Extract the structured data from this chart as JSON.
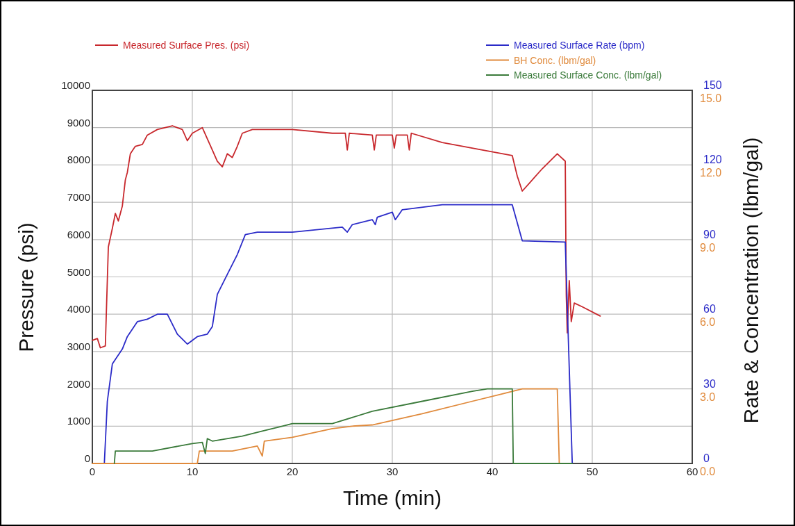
{
  "chart_data": {
    "type": "line",
    "xlabel": "Time (min)",
    "ylabel": "Pressure (psi)",
    "y2label": "Rate & Concentration (lbm/gal)",
    "xlim": [
      0,
      60
    ],
    "xticks": [
      0,
      10,
      20,
      30,
      40,
      50,
      60
    ],
    "ylim": [
      0,
      10000
    ],
    "yticks": [
      0,
      1000,
      2000,
      3000,
      4000,
      5000,
      6000,
      7000,
      8000,
      9000,
      10000
    ],
    "y2lim": [
      0,
      150
    ],
    "y2ticks": [
      0,
      30,
      60,
      90,
      120,
      150
    ],
    "y3lim": [
      0,
      15
    ],
    "y3ticks": [
      {
        "value": 0,
        "label": "0.0"
      },
      {
        "value": 3,
        "label": "3.0"
      },
      {
        "value": 6,
        "label": "6.0"
      },
      {
        "value": 9,
        "label": "9.0"
      },
      {
        "value": 12,
        "label": "12.0"
      },
      {
        "value": 15,
        "label": "15.0"
      }
    ],
    "grid": true,
    "legend": "top",
    "line_style": "solid",
    "marker": "none",
    "series": [
      {
        "name": "Measured Surface Pres. (psi)",
        "color": "#c8282d",
        "axis": "y",
        "x": [
          0,
          0.5,
          0.8,
          1.3,
          1.6,
          2.0,
          2.3,
          2.6,
          3.0,
          3.3,
          3.5,
          3.8,
          4.3,
          5,
          5.5,
          6.5,
          8,
          9,
          9.5,
          10,
          11,
          12,
          12.5,
          13,
          13.5,
          14,
          14.5,
          15,
          16,
          20,
          24,
          25.3,
          25.5,
          25.7,
          28,
          28.2,
          28.4,
          30,
          30.2,
          30.4,
          31.5,
          31.7,
          31.9,
          35,
          42,
          42.5,
          43,
          45,
          46.5,
          47.3,
          47.4,
          47.5,
          47.7,
          47.9,
          48.2,
          49,
          50.8
        ],
        "values": [
          3300,
          3350,
          3100,
          3150,
          5800,
          6300,
          6700,
          6500,
          6900,
          7600,
          7800,
          8300,
          8500,
          8550,
          8800,
          8950,
          9050,
          8950,
          8650,
          8850,
          9000,
          8400,
          8100,
          7950,
          8300,
          8200,
          8500,
          8850,
          8950,
          8950,
          8850,
          8850,
          8400,
          8850,
          8800,
          8400,
          8800,
          8800,
          8450,
          8800,
          8800,
          8400,
          8850,
          8600,
          8250,
          7700,
          7300,
          7900,
          8300,
          8100,
          4500,
          3500,
          4900,
          3800,
          4300,
          4200,
          3950
        ]
      },
      {
        "name": "Measured Surface Rate (bpm)",
        "color": "#2b2bc8",
        "axis": "y2",
        "x": [
          1.2,
          1.5,
          2,
          2.5,
          3,
          3.5,
          4.5,
          5.5,
          6.5,
          7.5,
          8.5,
          9.5,
          10.5,
          11.5,
          12,
          12.5,
          13.5,
          14.5,
          15.3,
          16.5,
          20,
          25,
          25.5,
          26,
          28,
          28.3,
          28.5,
          30,
          30.3,
          31,
          35,
          42,
          43,
          47.3,
          48
        ],
        "values": [
          0,
          25,
          40,
          43,
          46,
          51,
          57,
          58,
          60,
          60,
          52,
          48,
          51,
          52,
          55,
          68,
          76,
          84,
          92,
          93,
          93,
          95,
          93,
          96,
          98,
          96,
          99,
          101,
          98,
          102,
          104,
          104,
          89.5,
          89,
          0
        ]
      },
      {
        "name": "BH Conc. (lbm/gal)",
        "color": "#e08a3c",
        "axis": "y3",
        "x": [
          0,
          10.5,
          10.7,
          14,
          16.5,
          17,
          17.2,
          20,
          24,
          26,
          28,
          33,
          38,
          41,
          43,
          46.5,
          46.7
        ],
        "values": [
          0,
          0,
          0.5,
          0.5,
          0.7,
          0.3,
          0.9,
          1.05,
          1.4,
          1.5,
          1.55,
          2.0,
          2.5,
          2.8,
          3.0,
          3.0,
          0
        ]
      },
      {
        "name": "Measured Surface Conc. (lbm/gal)",
        "color": "#3a7a3a",
        "axis": "y3",
        "x": [
          2.2,
          2.3,
          6,
          10,
          11,
          11.3,
          11.5,
          12,
          15,
          17,
          19,
          20,
          24,
          28,
          33,
          38,
          39.5,
          42,
          42.1,
          48
        ],
        "values": [
          0,
          0.5,
          0.5,
          0.8,
          0.85,
          0.4,
          1.0,
          0.9,
          1.1,
          1.3,
          1.5,
          1.6,
          1.6,
          2.1,
          2.5,
          2.9,
          3.0,
          3.0,
          0,
          0
        ]
      }
    ]
  }
}
